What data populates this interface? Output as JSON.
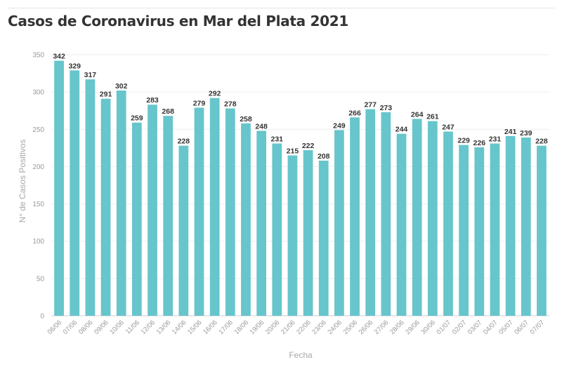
{
  "title": "Casos de Coronavirus en Mar del Plata 2021",
  "colors": {
    "bar": "#67c5cc",
    "grid": "#eeeeee",
    "axis": "#cccccc",
    "label": "#333333",
    "tick": "#9a9a9a"
  },
  "chart_data": {
    "type": "bar",
    "title": "Casos de Coronavirus en Mar del Plata 2021",
    "xlabel": "Fecha",
    "ylabel": "N° de Casos Positivos",
    "ylim": [
      0,
      350
    ],
    "yticks": [
      0,
      50,
      100,
      150,
      200,
      250,
      300,
      350
    ],
    "grid": true,
    "categories": [
      "06/06",
      "07/06",
      "08/06",
      "09/06",
      "10/06",
      "11/06",
      "12/06",
      "13/06",
      "14/06",
      "15/06",
      "16/06",
      "17/06",
      "18/06",
      "19/06",
      "20/06",
      "21/06",
      "22/06",
      "23/06",
      "24/06",
      "25/06",
      "26/06",
      "27/06",
      "28/06",
      "29/06",
      "30/06",
      "01/07",
      "02/07",
      "03/07",
      "04/07",
      "05/07",
      "06/07",
      "07/07"
    ],
    "values": [
      342,
      329,
      317,
      291,
      302,
      259,
      283,
      268,
      228,
      279,
      292,
      278,
      258,
      248,
      231,
      215,
      222,
      208,
      249,
      266,
      277,
      273,
      244,
      264,
      261,
      247,
      229,
      226,
      231,
      241,
      239,
      228
    ]
  }
}
